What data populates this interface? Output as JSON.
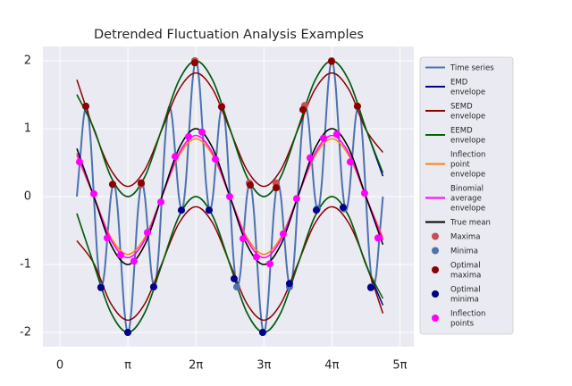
{
  "chart_data": {
    "type": "line",
    "title": "Detrended Fluctuation Analysis Examples",
    "xlim": [
      -0.784,
      16.35
    ],
    "ylim": [
      -2.21,
      2.21
    ],
    "xticks": [
      0,
      {
        "value": 3.14159,
        "label": "π"
      },
      {
        "value": 6.28319,
        "label": "2π"
      },
      {
        "value": 9.42478,
        "label": "3π"
      },
      {
        "value": 12.56637,
        "label": "4π"
      },
      {
        "value": 15.70796,
        "label": "5π"
      }
    ],
    "yticks": [
      -2,
      -1,
      0,
      1,
      2
    ],
    "grid": true,
    "legend": "outside right",
    "series": [
      {
        "name": "Time series",
        "style": "line",
        "color": "#4c72b0",
        "x": [
          0.785,
          0.942,
          1.1,
          1.257,
          1.414,
          1.571,
          1.728,
          1.885,
          2.042,
          2.199,
          2.356,
          2.513,
          2.67,
          2.827,
          2.985,
          3.142,
          3.299,
          3.456,
          3.613,
          3.77,
          3.927,
          4.084,
          4.241,
          4.398,
          4.555,
          4.712,
          4.869,
          5.027,
          5.184,
          5.341,
          5.498,
          5.655,
          5.812,
          5.969,
          6.126,
          6.283,
          6.44,
          6.597,
          6.754,
          6.912,
          7.069,
          7.226,
          7.383,
          7.54,
          7.697,
          7.854,
          8.011,
          8.168,
          8.325,
          8.482,
          8.639,
          8.796,
          8.954,
          9.111,
          9.268,
          9.425,
          9.582,
          9.739,
          9.896,
          10.053,
          10.21,
          10.367,
          10.524,
          10.681,
          10.838,
          10.996,
          11.153,
          11.31,
          11.467,
          11.624,
          11.781,
          11.938,
          12.095,
          12.252,
          12.409,
          12.566,
          12.723,
          12.881,
          13.038,
          13.195,
          13.352,
          13.509,
          13.666,
          13.823,
          13.98,
          14.137,
          14.294,
          14.451,
          14.608,
          14.765,
          14.923
        ],
        "values": [
          0,
          0.588,
          1.161,
          1.309,
          0.863,
          0,
          -0.863,
          -1.309,
          -1.161,
          -0.588,
          0,
          0.191,
          -0.184,
          -0.951,
          -1.695,
          -2,
          -1.695,
          -0.951,
          -0.184,
          0.191,
          0,
          -0.588,
          -1.161,
          -1.309,
          -0.863,
          0,
          0.863,
          1.309,
          1.161,
          0.588,
          0,
          -0.191,
          0.184,
          0.951,
          1.695,
          2,
          1.695,
          0.951,
          0.184,
          -0.191,
          0,
          0.588,
          1.161,
          1.309,
          0.863,
          0,
          -0.863,
          -1.309,
          -1.161,
          -0.588,
          0,
          0.191,
          -0.184,
          -0.951,
          -1.695,
          -2,
          -1.695,
          -0.951,
          -0.184,
          0.191,
          0,
          -0.588,
          -1.161,
          -1.309,
          -0.863,
          0,
          0.863,
          1.309,
          1.161,
          0.588,
          0,
          -0.191,
          0.184,
          0.951,
          1.695,
          2,
          1.695,
          0.951,
          0.184,
          -0.191,
          0,
          0.588,
          1.161,
          1.309,
          0.863,
          0,
          -0.863,
          -1.309,
          -1.161,
          -0.588,
          0
        ]
      },
      {
        "name": "EMD envelope",
        "style": "envelope",
        "color": "#00008b",
        "x": [
          0.785,
          1.571,
          2.356,
          3.142,
          3.927,
          4.712,
          5.498,
          6.283,
          7.069,
          7.854,
          8.639,
          9.425,
          10.21,
          10.996,
          11.781,
          12.566,
          13.352,
          14.137,
          14.923
        ],
        "upper": [
          1.5,
          1,
          0.293,
          0,
          0.293,
          1,
          1.707,
          2,
          1.707,
          1,
          0.293,
          0,
          0.293,
          1,
          1.707,
          2,
          1.707,
          1,
          0.3
        ],
        "lower": [
          -0.25,
          -1,
          -1.707,
          -2,
          -1.707,
          -1,
          -0.293,
          0,
          -0.293,
          -1,
          -1.707,
          -2,
          -1.707,
          -1,
          -0.293,
          0,
          -0.293,
          -1,
          -1.6
        ]
      },
      {
        "name": "SEMD envelope",
        "style": "envelope",
        "color": "#8b0000",
        "x": [
          0.785,
          1.571,
          2.356,
          3.142,
          3.927,
          4.712,
          5.498,
          6.283,
          7.069,
          7.854,
          8.639,
          9.425,
          10.21,
          10.996,
          11.781,
          12.566,
          13.352,
          14.137,
          14.923
        ],
        "upper": [
          1.72,
          0.985,
          0.395,
          0.15,
          0.395,
          0.985,
          1.575,
          1.82,
          1.575,
          0.985,
          0.395,
          0.15,
          0.395,
          0.985,
          1.575,
          1.82,
          1.575,
          0.985,
          0.65
        ],
        "lower": [
          -0.65,
          -0.985,
          -1.575,
          -1.82,
          -1.575,
          -0.985,
          -0.395,
          -0.15,
          -0.395,
          -0.985,
          -1.575,
          -1.82,
          -1.575,
          -0.985,
          -0.395,
          -0.15,
          -0.395,
          -0.985,
          -1.72
        ]
      },
      {
        "name": "EEMD envelope",
        "style": "envelope",
        "color": "#006400",
        "x": [
          0.785,
          1.571,
          2.356,
          3.142,
          3.927,
          4.712,
          5.498,
          6.283,
          7.069,
          7.854,
          8.639,
          9.425,
          10.21,
          10.996,
          11.781,
          12.566,
          13.352,
          14.137,
          14.923
        ],
        "upper": [
          1.5,
          1,
          0.293,
          0,
          0.293,
          1,
          1.707,
          2,
          1.707,
          1,
          0.293,
          0,
          0.293,
          1,
          1.707,
          2,
          1.707,
          1,
          0.35
        ],
        "lower": [
          -0.25,
          -1,
          -1.707,
          -2,
          -1.707,
          -1,
          -0.293,
          0,
          -0.293,
          -1,
          -1.707,
          -2,
          -1.707,
          -1,
          -0.293,
          0,
          -0.293,
          -1,
          -1.5
        ]
      },
      {
        "name": "Inflection point envelope",
        "style": "line",
        "color": "#ff7f0e",
        "x": [
          0.785,
          1.571,
          2.356,
          3.142,
          3.927,
          4.712,
          5.498,
          6.283,
          7.069,
          7.854,
          8.639,
          9.425,
          10.21,
          10.996,
          11.781,
          12.566,
          13.352,
          14.137,
          14.923
        ],
        "values": [
          0.601,
          0,
          -0.601,
          -0.85,
          -0.601,
          0,
          0.601,
          0.85,
          0.601,
          0,
          -0.601,
          -0.85,
          -0.601,
          0,
          0.601,
          0.85,
          0.601,
          0,
          -0.601
        ]
      },
      {
        "name": "Binomial average envelope",
        "style": "line",
        "color": "#ff00ff",
        "x": [
          0.785,
          1.571,
          2.356,
          3.142,
          3.927,
          4.712,
          5.498,
          6.283,
          7.069,
          7.854,
          8.639,
          9.425,
          10.21,
          10.996,
          11.781,
          12.566,
          13.352,
          14.137,
          14.923
        ],
        "values": [
          0.636,
          0,
          -0.636,
          -0.9,
          -0.636,
          0,
          0.636,
          0.9,
          0.636,
          0,
          -0.636,
          -0.9,
          -0.636,
          0,
          0.636,
          0.9,
          0.636,
          0,
          -0.636
        ]
      },
      {
        "name": "True mean",
        "style": "line",
        "color": "#000000",
        "x": [
          0.785,
          1.571,
          2.356,
          3.142,
          3.927,
          4.712,
          5.498,
          6.283,
          7.069,
          7.854,
          8.639,
          9.425,
          10.21,
          10.996,
          11.781,
          12.566,
          13.352,
          14.137,
          14.923
        ],
        "values": [
          0.707,
          0,
          -0.707,
          -1,
          -0.707,
          0,
          0.707,
          1,
          0.707,
          0,
          -0.707,
          -1,
          -0.707,
          0,
          0.707,
          1,
          0.707,
          0,
          -0.707
        ]
      },
      {
        "name": "Maxima",
        "style": "points",
        "color": "#c44e52",
        "x": [
          1.197,
          2.436,
          3.757,
          6.233,
          7.472,
          8.752,
          9.99,
          11.311,
          12.55,
          13.746
        ],
        "values": [
          1.33,
          0.18,
          0.18,
          2,
          1.33,
          0.2,
          0.2,
          1.34,
          2,
          1.33
        ]
      },
      {
        "name": "Minima",
        "style": "points",
        "color": "#4c72b0",
        "x": [
          1.899,
          3.137,
          4.334,
          5.614,
          6.894,
          8.173,
          9.37,
          10.609,
          11.889,
          13.128,
          14.366
        ],
        "values": [
          -1.33,
          -2,
          -1.33,
          -0.2,
          -0.2,
          -1.33,
          -2,
          -1.33,
          -0.18,
          -0.18,
          -1.33
        ]
      },
      {
        "name": "Optimal maxima",
        "style": "points",
        "color": "#8b0000",
        "x": [
          1.197,
          2.436,
          3.757,
          6.233,
          7.472,
          8.793,
          9.99,
          11.229,
          12.55,
          13.746
        ],
        "values": [
          1.33,
          0.18,
          0.2,
          1.97,
          1.32,
          0.17,
          0.13,
          1.28,
          1.99,
          1.33
        ]
      },
      {
        "name": "Optimal minima",
        "style": "points",
        "color": "#00008b",
        "x": [
          1.899,
          3.137,
          4.334,
          5.614,
          6.894,
          8.05,
          9.37,
          10.609,
          11.848,
          13.086,
          14.366
        ],
        "values": [
          -1.34,
          -2,
          -1.33,
          -0.2,
          -0.2,
          -1.21,
          -2,
          -1.28,
          -0.2,
          -0.16,
          -1.34
        ]
      },
      {
        "name": "Inflection points",
        "style": "points",
        "color": "#ff00ff",
        "x": [
          0.908,
          1.569,
          2.188,
          2.807,
          3.426,
          4.045,
          4.665,
          5.325,
          5.945,
          6.564,
          7.183,
          7.843,
          8.463,
          9.082,
          9.701,
          10.32,
          10.939,
          11.558,
          12.178,
          12.797,
          13.416,
          14.077,
          14.696
        ],
        "values": [
          0.51,
          0.04,
          -0.61,
          -0.86,
          -0.95,
          -0.53,
          -0.08,
          0.59,
          0.88,
          0.95,
          0.55,
          0,
          -0.62,
          -0.89,
          -0.99,
          -0.55,
          -0.03,
          0.57,
          0.86,
          0.92,
          0.51,
          0.05,
          -0.61
        ]
      }
    ]
  }
}
